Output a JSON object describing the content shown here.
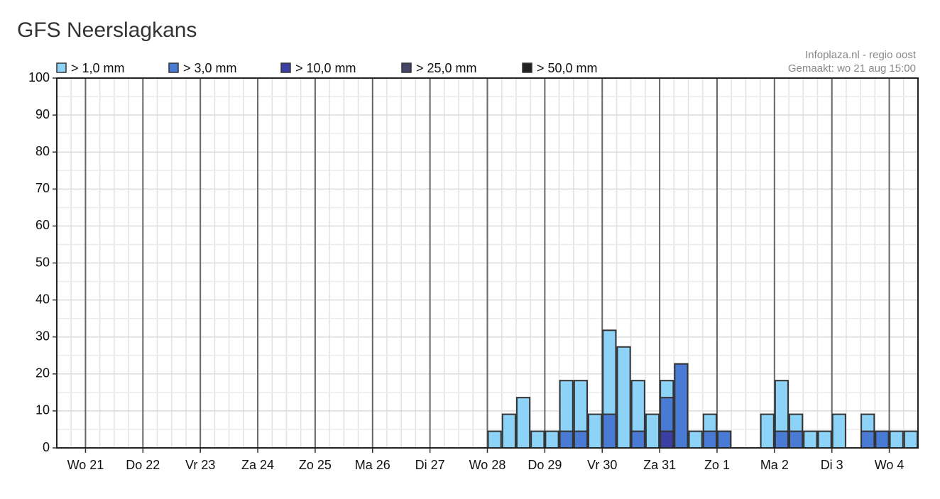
{
  "chart_data": {
    "type": "bar",
    "title": "GFS Neerslagkans",
    "source": "Infoplaza.nl - regio oost",
    "created": "Gemaakt: wo 21 aug 15:00",
    "xlim": [
      0,
      60
    ],
    "xticks": [
      {
        "value": 2,
        "label": "Wo 21"
      },
      {
        "value": 6,
        "label": "Do 22"
      },
      {
        "value": 10,
        "label": "Vr 23"
      },
      {
        "value": 14,
        "label": "Za 24"
      },
      {
        "value": 18,
        "label": "Zo 25"
      },
      {
        "value": 22,
        "label": "Ma 26"
      },
      {
        "value": 26,
        "label": "Di 27"
      },
      {
        "value": 30,
        "label": "Wo 28"
      },
      {
        "value": 34,
        "label": "Do 29"
      },
      {
        "value": 38,
        "label": "Vr 30"
      },
      {
        "value": 42,
        "label": "Za 31"
      },
      {
        "value": 46,
        "label": "Zo 1"
      },
      {
        "value": 50,
        "label": "Ma 2"
      },
      {
        "value": 54,
        "label": "Di 3"
      },
      {
        "value": 58,
        "label": "Wo 4"
      }
    ],
    "ylim": [
      0,
      100
    ],
    "yticks": [
      0,
      10,
      20,
      30,
      40,
      50,
      60,
      70,
      80,
      90,
      100
    ],
    "grid": true,
    "series": [
      {
        "name": "> 1,0 mm",
        "color": "#8dd3f8",
        "values": [
          0,
          0,
          0,
          0,
          0,
          0,
          0,
          0,
          0,
          0,
          0,
          0,
          0,
          0,
          0,
          0,
          0,
          0,
          0,
          0,
          0,
          0,
          0,
          0,
          0,
          0,
          0,
          0,
          0,
          0,
          4.5,
          9.1,
          13.6,
          4.5,
          4.5,
          18.2,
          18.2,
          9.1,
          31.8,
          27.3,
          18.2,
          9.1,
          18.2,
          22.7,
          4.5,
          9.1,
          4.5,
          0,
          0,
          9.1,
          18.2,
          9.1,
          4.5,
          4.5,
          9.1,
          0,
          9.1,
          4.5,
          4.5,
          4.5
        ]
      },
      {
        "name": "> 3,0 mm",
        "color": "#4a7bd4",
        "values": [
          0,
          0,
          0,
          0,
          0,
          0,
          0,
          0,
          0,
          0,
          0,
          0,
          0,
          0,
          0,
          0,
          0,
          0,
          0,
          0,
          0,
          0,
          0,
          0,
          0,
          0,
          0,
          0,
          0,
          0,
          0,
          0,
          0,
          0,
          0,
          4.5,
          4.5,
          0,
          9.1,
          0,
          4.5,
          0,
          13.6,
          22.7,
          0,
          4.5,
          4.5,
          0,
          0,
          0,
          4.5,
          4.5,
          0,
          0,
          0,
          0,
          4.5,
          4.5,
          0,
          0
        ]
      },
      {
        "name": "> 10,0 mm",
        "color": "#3b3fa3",
        "values": [
          0,
          0,
          0,
          0,
          0,
          0,
          0,
          0,
          0,
          0,
          0,
          0,
          0,
          0,
          0,
          0,
          0,
          0,
          0,
          0,
          0,
          0,
          0,
          0,
          0,
          0,
          0,
          0,
          0,
          0,
          0,
          0,
          0,
          0,
          0,
          0,
          0,
          0,
          0,
          0,
          0,
          0,
          4.5,
          0,
          0,
          0,
          0,
          0,
          0,
          0,
          0,
          0,
          0,
          0,
          0,
          0,
          0,
          0,
          0,
          0
        ]
      },
      {
        "name": "> 25,0 mm",
        "color": "#45456a",
        "values": [
          0,
          0,
          0,
          0,
          0,
          0,
          0,
          0,
          0,
          0,
          0,
          0,
          0,
          0,
          0,
          0,
          0,
          0,
          0,
          0,
          0,
          0,
          0,
          0,
          0,
          0,
          0,
          0,
          0,
          0,
          0,
          0,
          0,
          0,
          0,
          0,
          0,
          0,
          0,
          0,
          0,
          0,
          0,
          0,
          0,
          0,
          0,
          0,
          0,
          0,
          0,
          0,
          0,
          0,
          0,
          0,
          0,
          0,
          0,
          0
        ]
      },
      {
        "name": "> 50,0 mm",
        "color": "#222222",
        "values": [
          0,
          0,
          0,
          0,
          0,
          0,
          0,
          0,
          0,
          0,
          0,
          0,
          0,
          0,
          0,
          0,
          0,
          0,
          0,
          0,
          0,
          0,
          0,
          0,
          0,
          0,
          0,
          0,
          0,
          0,
          0,
          0,
          0,
          0,
          0,
          0,
          0,
          0,
          0,
          0,
          0,
          0,
          0,
          0,
          0,
          0,
          0,
          0,
          0,
          0,
          0,
          0,
          0,
          0,
          0,
          0,
          0,
          0,
          0,
          0
        ]
      }
    ]
  }
}
